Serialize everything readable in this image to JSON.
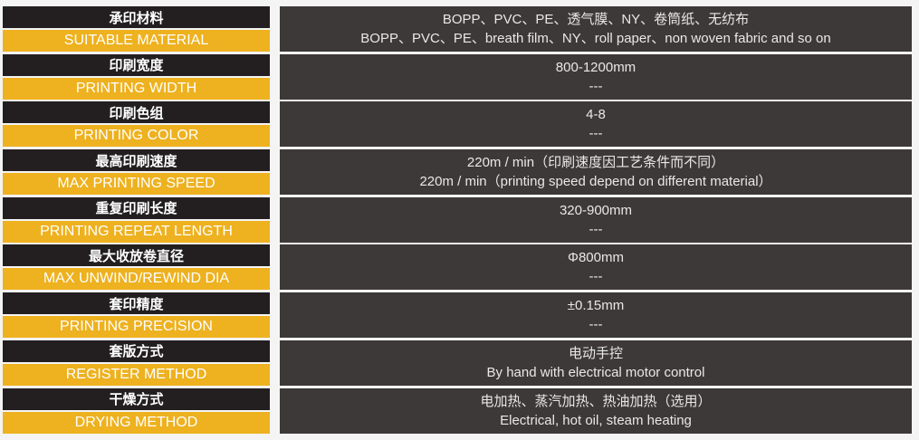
{
  "rows": [
    {
      "cn": "承印材料",
      "en": "SUITABLE MATERIAL",
      "v1": "BOPP、PVC、PE、透气膜、NY、卷筒纸、无纺布",
      "v2": "BOPP、PVC、PE、breath film、NY、roll paper、non woven fabric and so on"
    },
    {
      "cn": "印刷宽度",
      "en": "PRINTING WIDTH",
      "v1": "800-1200mm",
      "v2": "---"
    },
    {
      "cn": "印刷色组",
      "en": "PRINTING COLOR",
      "v1": "4-8",
      "v2": "---"
    },
    {
      "cn": "最高印刷速度",
      "en": "MAX PRINTING SPEED",
      "v1": "220m / min（印刷速度因工艺条件而不同）",
      "v2": "220m / min（printing speed depend on different material）"
    },
    {
      "cn": "重复印刷长度",
      "en": "PRINTING REPEAT LENGTH",
      "v1": "320-900mm",
      "v2": "---"
    },
    {
      "cn": "最大收放卷直径",
      "en": "MAX UNWIND/REWIND DIA",
      "v1": "Φ800mm",
      "v2": "---"
    },
    {
      "cn": "套印精度",
      "en": "PRINTING PRECISION",
      "v1": "±0.15mm",
      "v2": "---"
    },
    {
      "cn": "套版方式",
      "en": "REGISTER METHOD",
      "v1": "电动手控",
      "v2": "By hand with electrical motor control"
    },
    {
      "cn": "干燥方式",
      "en": "DRYING METHOD",
      "v1": "电加热、蒸汽加热、热油加热（选用）",
      "v2": "Electrical, hot oil, steam heating"
    }
  ]
}
